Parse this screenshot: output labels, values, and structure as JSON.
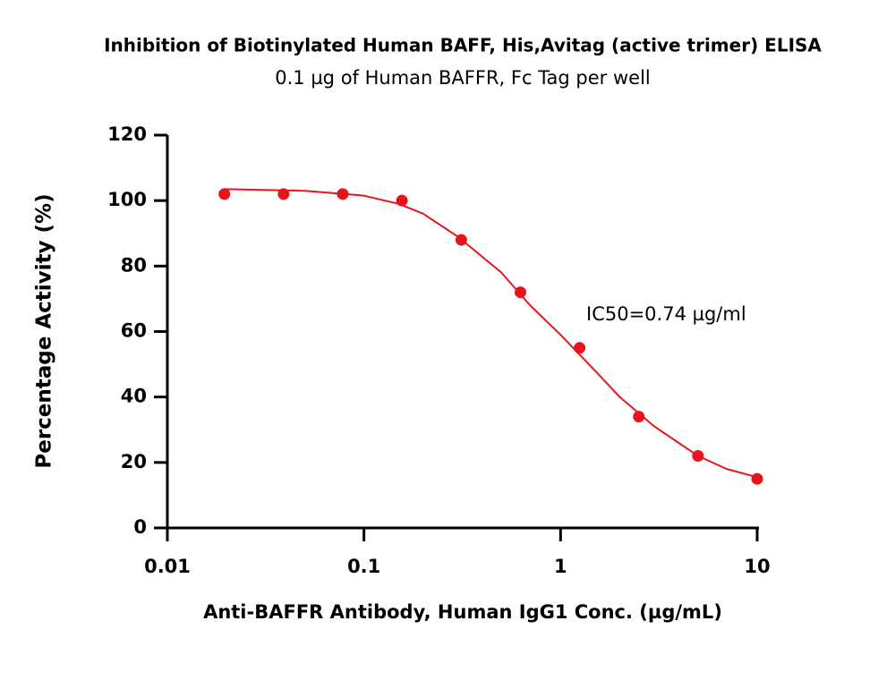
{
  "chart_data": {
    "type": "scatter",
    "title": "Inhibition of Biotinylated Human BAFF, His,Avitag (active trimer) ELISA",
    "subtitle": "0.1 µg of Human BAFFR, Fc Tag per well",
    "x_label": "Anti-BAFFR Antibody, Human IgG1 Conc. (µg/mL)",
    "y_label": "Percentage Activity (%)",
    "annotation": "IC50=0.74 µg/ml",
    "x_scale": "log",
    "xlim": [
      0.01,
      10
    ],
    "xticks": [
      0.01,
      0.1,
      1,
      10
    ],
    "ylim": [
      0,
      120
    ],
    "yticks": [
      0,
      20,
      40,
      60,
      80,
      100,
      120
    ],
    "series": [
      {
        "type": "scatter",
        "color": "#e8141c",
        "x": [
          0.0195,
          0.039,
          0.078,
          0.156,
          0.3125,
          0.625,
          1.25,
          2.5,
          5,
          10
        ],
        "values": [
          102,
          102,
          102,
          100,
          88,
          72,
          55,
          34,
          22,
          15
        ]
      },
      {
        "type": "line",
        "color": "#e8141c",
        "x": [
          0.0195,
          0.05,
          0.1,
          0.15,
          0.2,
          0.3,
          0.5,
          0.7,
          1,
          1.5,
          2,
          3,
          5,
          7,
          10
        ],
        "values": [
          103.5,
          103,
          101.5,
          99,
          96,
          89,
          78,
          68,
          59,
          48,
          40,
          31,
          22,
          18,
          15.5
        ]
      }
    ]
  }
}
